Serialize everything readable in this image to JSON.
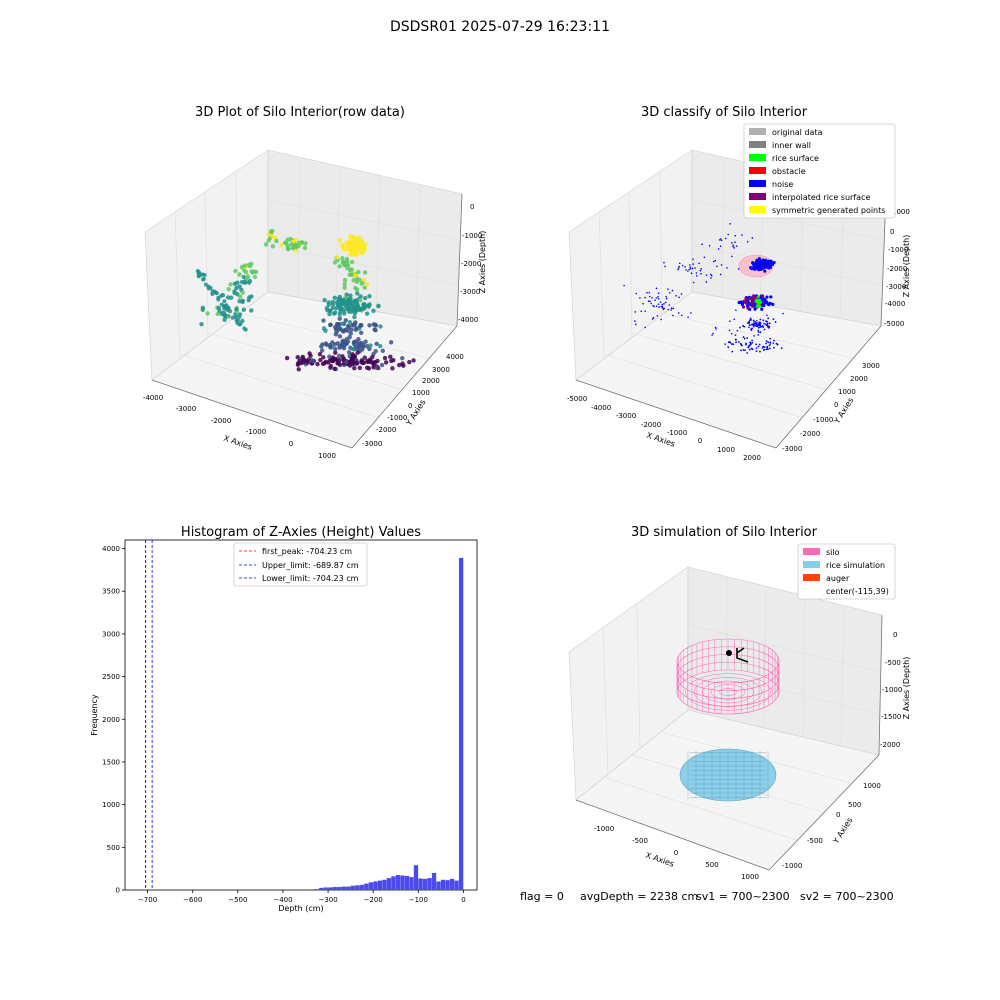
{
  "suptitle": "DSDSR01 2025-07-29 16:23:11",
  "chart_data": [
    {
      "type": "scatter3d",
      "title": "3D Plot of Silo Interior(row data)",
      "xlabel": "X Axies",
      "ylabel": "Y Axies",
      "zlabel": "Z Axies (Depth)",
      "x_ticks": [
        "-4000",
        "-3000",
        "-2000",
        "-1000",
        "0",
        "1000"
      ],
      "y_ticks": [
        "-3000",
        "-2000",
        "-1000",
        "0",
        "1000",
        "2000",
        "3000",
        "4000"
      ],
      "z_ticks": [
        "-4000",
        "-3000",
        "-2000",
        "-1000",
        "0"
      ],
      "colormap": [
        "#440154",
        "#3b528b",
        "#21918c",
        "#5ec962",
        "#fde725"
      ]
    },
    {
      "type": "scatter3d",
      "title": "3D classify of Silo Interior",
      "xlabel": "X Axies",
      "ylabel": "Y Axies",
      "zlabel": "Z Axies (Depth)",
      "x_ticks": [
        "-5000",
        "-4000",
        "-3000",
        "-2000",
        "-1000",
        "0",
        "1000",
        "2000"
      ],
      "y_ticks": [
        "-3000",
        "-2000",
        "-1000",
        "0",
        "1000",
        "2000",
        "3000"
      ],
      "z_ticks": [
        "-5000",
        "-4000",
        "-3000",
        "-2000",
        "-1000",
        "0",
        "1000"
      ],
      "legend": [
        {
          "label": "original data",
          "color": "#b0b0b0"
        },
        {
          "label": "inner wall",
          "color": "#808080"
        },
        {
          "label": "rice surface",
          "color": "#00ff00"
        },
        {
          "label": "obstacle",
          "color": "#ff0000"
        },
        {
          "label": "noise",
          "color": "#0000ff"
        },
        {
          "label": "interpolated rice surface",
          "color": "#800080"
        },
        {
          "label": "symmetric generated points",
          "color": "#ffff00"
        }
      ]
    },
    {
      "type": "histogram",
      "title": "Histogram of Z-Axies (Height) Values",
      "xlabel": "Depth (cm)",
      "ylabel": "Frequency",
      "xlim": [
        -750,
        30
      ],
      "ylim": [
        0,
        4100
      ],
      "x_ticks": [
        -700,
        -600,
        -500,
        -400,
        -300,
        -200,
        -100,
        0
      ],
      "y_ticks": [
        0,
        500,
        1000,
        1500,
        2000,
        2500,
        3000,
        3500,
        4000
      ],
      "bin_width": 10,
      "bar_color": "#4a4af0",
      "bins": [
        {
          "x": -330,
          "count": 10
        },
        {
          "x": -320,
          "count": 25
        },
        {
          "x": -310,
          "count": 30
        },
        {
          "x": -300,
          "count": 30
        },
        {
          "x": -290,
          "count": 35
        },
        {
          "x": -280,
          "count": 35
        },
        {
          "x": -270,
          "count": 40
        },
        {
          "x": -260,
          "count": 40
        },
        {
          "x": -250,
          "count": 50
        },
        {
          "x": -240,
          "count": 55
        },
        {
          "x": -230,
          "count": 60
        },
        {
          "x": -220,
          "count": 75
        },
        {
          "x": -210,
          "count": 90
        },
        {
          "x": -200,
          "count": 100
        },
        {
          "x": -190,
          "count": 110
        },
        {
          "x": -180,
          "count": 120
        },
        {
          "x": -170,
          "count": 140
        },
        {
          "x": -160,
          "count": 160
        },
        {
          "x": -150,
          "count": 175
        },
        {
          "x": -140,
          "count": 170
        },
        {
          "x": -130,
          "count": 165
        },
        {
          "x": -120,
          "count": 150
        },
        {
          "x": -110,
          "count": 290
        },
        {
          "x": -100,
          "count": 135
        },
        {
          "x": -90,
          "count": 130
        },
        {
          "x": -80,
          "count": 140
        },
        {
          "x": -70,
          "count": 200
        },
        {
          "x": -60,
          "count": 100
        },
        {
          "x": -50,
          "count": 120
        },
        {
          "x": -40,
          "count": 115
        },
        {
          "x": -30,
          "count": 130
        },
        {
          "x": -20,
          "count": 110
        },
        {
          "x": -10,
          "count": 3890
        }
      ],
      "vlines": [
        {
          "label": "first_peak: -704.23 cm",
          "x": -704.23,
          "color": "#ff0000"
        },
        {
          "label": "Upper_limit: -689.87 cm",
          "x": -689.87,
          "color": "#0000ff"
        },
        {
          "label": "Lower_limit: -704.23 cm",
          "x": -704.23,
          "color": "#0000ff"
        }
      ]
    },
    {
      "type": "surface3d",
      "title": "3D simulation of Silo Interior",
      "xlabel": "X Axies",
      "ylabel": "Y Axies",
      "zlabel": "Z Axies (Depth)",
      "x_ticks": [
        "-1000",
        "-500",
        "0",
        "500",
        "1000"
      ],
      "y_ticks": [
        "-1000",
        "-500",
        "0",
        "500",
        "1000"
      ],
      "z_ticks": [
        "-2000",
        "-1500",
        "-1000",
        "-500",
        "0"
      ],
      "legend": [
        {
          "label": "silo",
          "color": "#ff69b4"
        },
        {
          "label": "rice simulation",
          "color": "#87ceeb"
        },
        {
          "label": "auger",
          "color": "#ff4500"
        },
        {
          "label": "center(-115,39)",
          "color": ""
        }
      ]
    }
  ],
  "footer": {
    "flag": "flag = 0",
    "avg": "avgDepth = 2238 cm",
    "sv1": "sv1 = 700~2300",
    "sv2": "sv2 = 700~2300"
  }
}
